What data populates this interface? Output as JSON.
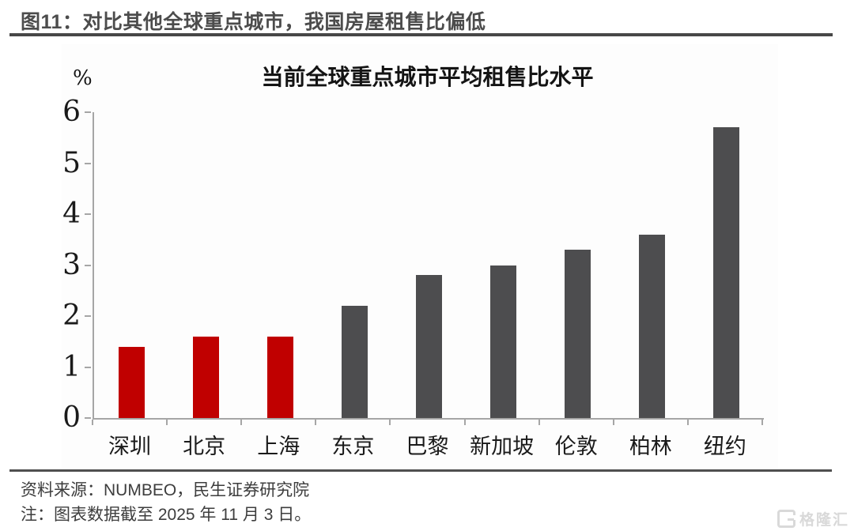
{
  "header": {
    "figure_title": "图11：对比其他全球重点城市，我国房屋租售比偏低"
  },
  "footer": {
    "source": "资料来源：NUMBEO，民生证券研究院",
    "note": "注：图表数据截至 2025 年 11 月 3 日。",
    "watermark_text": "格隆汇"
  },
  "chart_data": {
    "type": "bar",
    "title": "当前全球重点城市平均租售比水平",
    "ylabel": "%",
    "xlabel": "",
    "categories": [
      "深圳",
      "北京",
      "上海",
      "东京",
      "巴黎",
      "新加坡",
      "伦敦",
      "柏林",
      "纽约"
    ],
    "values": [
      1.4,
      1.6,
      1.6,
      2.2,
      2.8,
      3.0,
      3.3,
      3.6,
      5.7
    ],
    "bar_colors": [
      "#c00000",
      "#c00000",
      "#c00000",
      "#4d4d4f",
      "#4d4d4f",
      "#4d4d4f",
      "#4d4d4f",
      "#4d4d4f",
      "#4d4d4f"
    ],
    "highlight_color": "#c00000",
    "base_color": "#4d4d4f",
    "highlighted_categories": [
      "深圳",
      "北京",
      "上海"
    ],
    "ylim": [
      0,
      6
    ],
    "yticks": [
      0,
      1,
      2,
      3,
      4,
      5,
      6
    ],
    "grid": false,
    "legend": "none",
    "axis_color": "#a6a6a6"
  }
}
